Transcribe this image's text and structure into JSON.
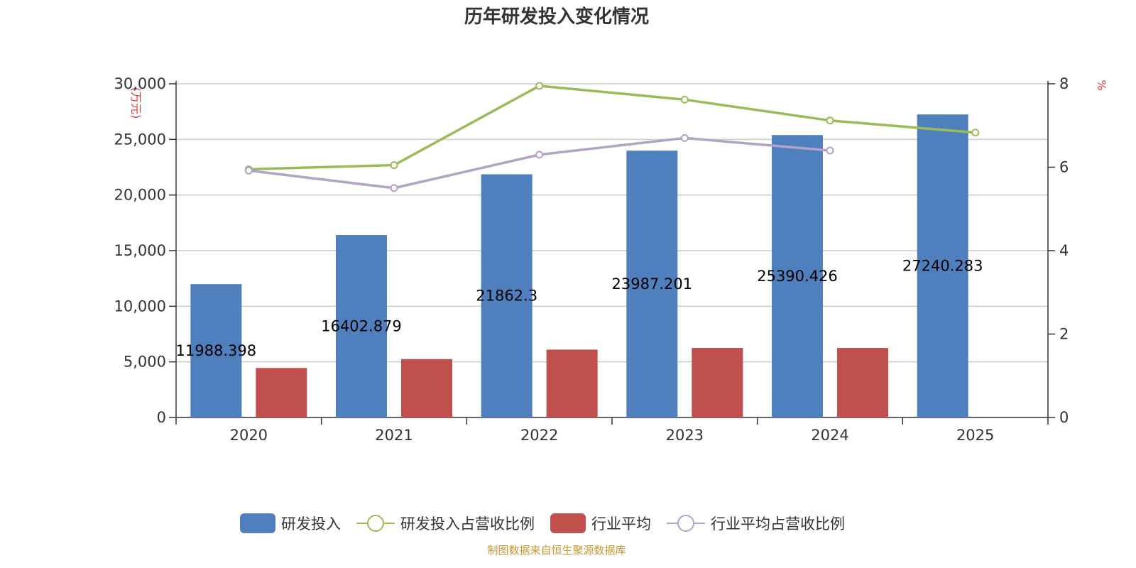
{
  "chart_data": {
    "type": "bar",
    "title": "历年研发投入变化情况",
    "categories": [
      "2020",
      "2021",
      "2022",
      "2023",
      "2024",
      "2025"
    ],
    "y_left": {
      "unit_label": "(万元)",
      "ylim": [
        0,
        30000
      ],
      "ticks": [
        "0",
        "5,000",
        "10,000",
        "15,000",
        "20,000",
        "25,000",
        "30,000"
      ],
      "tick_values": [
        0,
        5000,
        10000,
        15000,
        20000,
        25000,
        30000
      ]
    },
    "y_right": {
      "unit_label": "%",
      "ylim": [
        0,
        8
      ],
      "ticks": [
        "0",
        "2",
        "4",
        "6",
        "8"
      ],
      "tick_values": [
        0,
        2,
        4,
        6,
        8
      ]
    },
    "series": [
      {
        "name": "研发投入",
        "kind": "bar",
        "axis": "left",
        "color": "#4f7fbc",
        "values": [
          11988.398,
          16402.879,
          21862.3,
          23987.201,
          25390.426,
          27240.283
        ],
        "labels": [
          "11988.398",
          "16402.879",
          "21862.3",
          "23987.201",
          "25390.426",
          "27240.283"
        ]
      },
      {
        "name": "研发投入占营收比例",
        "kind": "line",
        "axis": "right",
        "color": "#9bbb59",
        "values": [
          5.95,
          6.05,
          7.95,
          7.62,
          7.12,
          6.83
        ]
      },
      {
        "name": "行业平均",
        "kind": "bar",
        "axis": "left",
        "color": "#c0504d",
        "values": [
          4450,
          5250,
          6100,
          6250,
          6250,
          null
        ]
      },
      {
        "name": "行业平均占营收比例",
        "kind": "line",
        "axis": "right",
        "color": "#b3a2c7",
        "values": [
          5.92,
          5.5,
          6.3,
          6.7,
          6.4,
          null
        ]
      }
    ],
    "legend_position": "bottom",
    "grid": true,
    "source": "制图数据来自恒生聚源数据库"
  }
}
